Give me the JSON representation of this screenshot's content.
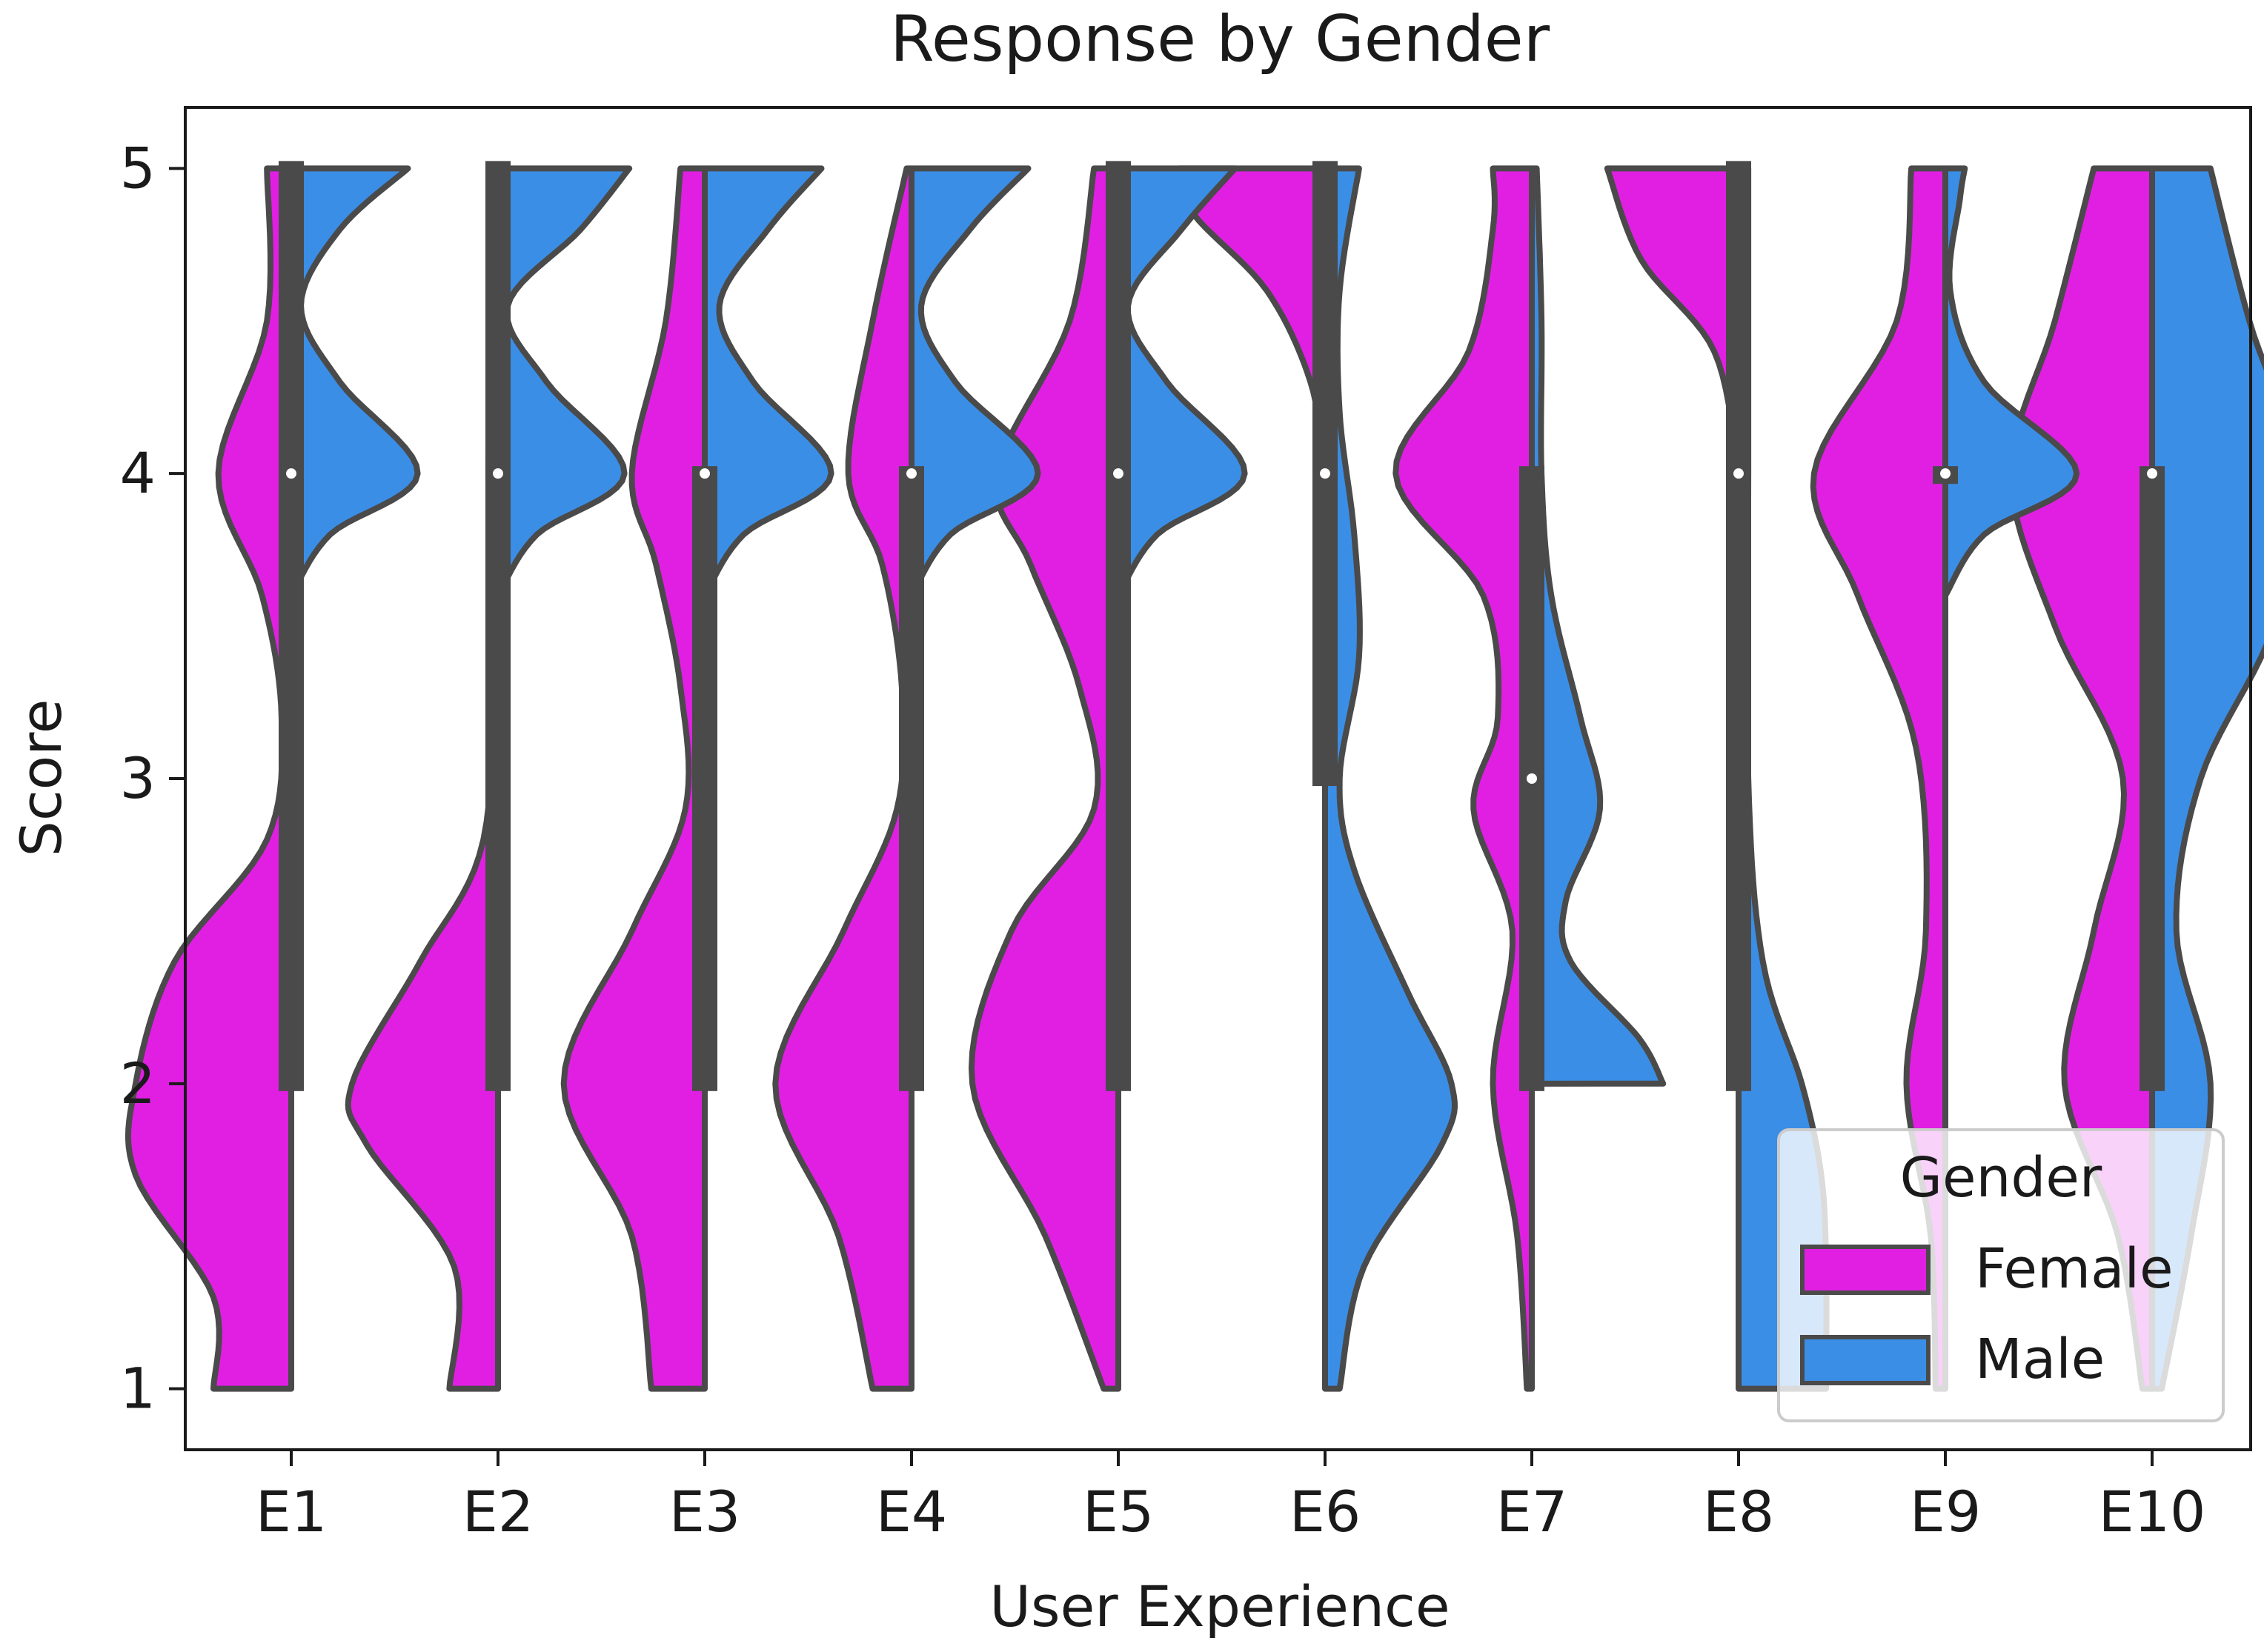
{
  "chart_data": {
    "type": "violin",
    "variant": "split",
    "title": "Response by Gender",
    "xlabel": "User Experience",
    "ylabel": "Score",
    "ylim": [
      0.8,
      5.2
    ],
    "yticks": [
      1,
      2,
      3,
      4,
      5
    ],
    "categories": [
      "E1",
      "E2",
      "E3",
      "E4",
      "E5",
      "E6",
      "E7",
      "E8",
      "E9",
      "E10"
    ],
    "legend": {
      "title": "Gender",
      "position": "bottom-right",
      "entries": [
        {
          "name": "Female",
          "color": "#e11fe3"
        },
        {
          "name": "Male",
          "color": "#3a8ee6"
        }
      ]
    },
    "series": [
      {
        "name": "Female",
        "color": "#e11fe3",
        "densities": [
          {
            "cat": "E1",
            "range": [
              1,
              5
            ],
            "points": [
              [
                1,
                0.16
              ],
              [
                1.3,
                0.16
              ],
              [
                1.7,
                0.32
              ],
              [
                2,
                0.32
              ],
              [
                2.4,
                0.24
              ],
              [
                2.8,
                0.05
              ],
              [
                3.2,
                0.02
              ],
              [
                3.6,
                0.06
              ],
              [
                4,
                0.15
              ],
              [
                4.5,
                0.05
              ],
              [
                5,
                0.05
              ]
            ]
          },
          {
            "cat": "E2",
            "range": [
              1,
              5
            ],
            "points": [
              [
                1,
                0.1
              ],
              [
                1.4,
                0.09
              ],
              [
                1.8,
                0.27
              ],
              [
                2,
                0.3
              ],
              [
                2.4,
                0.16
              ],
              [
                2.8,
                0.03
              ],
              [
                3.5,
                0.01
              ],
              [
                4,
                0.02
              ],
              [
                5,
                0.01
              ]
            ]
          },
          {
            "cat": "E3",
            "range": [
              1,
              5
            ],
            "points": [
              [
                1,
                0.11
              ],
              [
                1.5,
                0.15
              ],
              [
                2,
                0.29
              ],
              [
                2.5,
                0.15
              ],
              [
                2.9,
                0.04
              ],
              [
                3.3,
                0.05
              ],
              [
                3.7,
                0.1
              ],
              [
                4,
                0.15
              ],
              [
                4.5,
                0.08
              ],
              [
                5,
                0.05
              ]
            ]
          },
          {
            "cat": "E4",
            "range": [
              1,
              5
            ],
            "points": [
              [
                1,
                0.08
              ],
              [
                1.5,
                0.15
              ],
              [
                2,
                0.28
              ],
              [
                2.5,
                0.14
              ],
              [
                2.9,
                0.03
              ],
              [
                3.3,
                0.02
              ],
              [
                3.7,
                0.06
              ],
              [
                4,
                0.13
              ],
              [
                4.5,
                0.08
              ],
              [
                5,
                0.01
              ]
            ]
          },
          {
            "cat": "E5",
            "range": [
              1,
              5
            ],
            "points": [
              [
                1,
                0.03
              ],
              [
                1.5,
                0.15
              ],
              [
                2,
                0.3
              ],
              [
                2.5,
                0.22
              ],
              [
                2.9,
                0.05
              ],
              [
                3.3,
                0.08
              ],
              [
                3.7,
                0.18
              ],
              [
                4,
                0.25
              ],
              [
                4.5,
                0.1
              ],
              [
                5,
                0.05
              ]
            ]
          },
          {
            "cat": "E6",
            "range": [
              4,
              5
            ],
            "points": [
              [
                4,
                0.0
              ],
              [
                4.3,
                0.03
              ],
              [
                4.6,
                0.12
              ],
              [
                4.85,
                0.27
              ],
              [
                5,
                0.3
              ]
            ]
          },
          {
            "cat": "E7",
            "range": [
              1,
              5
            ],
            "points": [
              [
                1,
                0.01
              ],
              [
                1.5,
                0.03
              ],
              [
                2,
                0.08
              ],
              [
                2.5,
                0.04
              ],
              [
                2.9,
                0.12
              ],
              [
                3.2,
                0.07
              ],
              [
                3.6,
                0.1
              ],
              [
                4,
                0.28
              ],
              [
                4.4,
                0.13
              ],
              [
                4.8,
                0.08
              ],
              [
                5,
                0.08
              ]
            ]
          },
          {
            "cat": "E8",
            "range": [
              4,
              5
            ],
            "points": [
              [
                4,
                0.0
              ],
              [
                4.4,
                0.05
              ],
              [
                4.7,
                0.2
              ],
              [
                5,
                0.27
              ]
            ]
          },
          {
            "cat": "E9",
            "range": [
              1,
              5
            ],
            "points": [
              [
                1,
                0.02
              ],
              [
                1.5,
                0.03
              ],
              [
                2,
                0.08
              ],
              [
                2.5,
                0.04
              ],
              [
                3.1,
                0.06
              ],
              [
                3.6,
                0.18
              ],
              [
                4,
                0.27
              ],
              [
                4.5,
                0.1
              ],
              [
                5,
                0.07
              ]
            ]
          },
          {
            "cat": "E10",
            "range": [
              1,
              5
            ],
            "points": [
              [
                1,
                0.02
              ],
              [
                1.5,
                0.07
              ],
              [
                2,
                0.18
              ],
              [
                2.5,
                0.12
              ],
              [
                3,
                0.06
              ],
              [
                3.5,
                0.2
              ],
              [
                4,
                0.29
              ],
              [
                4.5,
                0.2
              ],
              [
                5,
                0.12
              ]
            ]
          }
        ]
      },
      {
        "name": "Male",
        "color": "#3a8ee6",
        "densities": [
          {
            "cat": "E1",
            "range": [
              3.6,
              5
            ],
            "points": [
              [
                3.6,
                0.0
              ],
              [
                3.8,
                0.08
              ],
              [
                4,
                0.26
              ],
              [
                4.3,
                0.1
              ],
              [
                4.55,
                0.02
              ],
              [
                4.8,
                0.1
              ],
              [
                5,
                0.24
              ]
            ]
          },
          {
            "cat": "E2",
            "range": [
              3.6,
              5
            ],
            "points": [
              [
                3.6,
                0.0
              ],
              [
                3.8,
                0.08
              ],
              [
                4,
                0.26
              ],
              [
                4.3,
                0.1
              ],
              [
                4.55,
                0.02
              ],
              [
                4.8,
                0.17
              ],
              [
                5,
                0.27
              ]
            ]
          },
          {
            "cat": "E3",
            "range": [
              3.6,
              5
            ],
            "points": [
              [
                3.6,
                0.0
              ],
              [
                3.8,
                0.08
              ],
              [
                4,
                0.26
              ],
              [
                4.3,
                0.1
              ],
              [
                4.55,
                0.03
              ],
              [
                4.8,
                0.13
              ],
              [
                5,
                0.24
              ]
            ]
          },
          {
            "cat": "E4",
            "range": [
              3.6,
              5
            ],
            "points": [
              [
                3.6,
                0.0
              ],
              [
                3.8,
                0.08
              ],
              [
                4,
                0.26
              ],
              [
                4.3,
                0.09
              ],
              [
                4.55,
                0.02
              ],
              [
                4.8,
                0.12
              ],
              [
                5,
                0.24
              ]
            ]
          },
          {
            "cat": "E5",
            "range": [
              3.6,
              5
            ],
            "points": [
              [
                3.6,
                0.0
              ],
              [
                3.8,
                0.08
              ],
              [
                4,
                0.26
              ],
              [
                4.3,
                0.1
              ],
              [
                4.55,
                0.02
              ],
              [
                4.8,
                0.13
              ],
              [
                5,
                0.24
              ]
            ]
          },
          {
            "cat": "E6",
            "range": [
              1,
              5
            ],
            "points": [
              [
                1,
                0.03
              ],
              [
                1.4,
                0.08
              ],
              [
                1.8,
                0.24
              ],
              [
                2,
                0.26
              ],
              [
                2.3,
                0.17
              ],
              [
                2.7,
                0.06
              ],
              [
                3,
                0.03
              ],
              [
                3.4,
                0.07
              ],
              [
                3.8,
                0.06
              ],
              [
                4.2,
                0.03
              ],
              [
                4.6,
                0.03
              ],
              [
                5,
                0.07
              ]
            ]
          },
          {
            "cat": "E7",
            "range": [
              2,
              5
            ],
            "points": [
              [
                2,
                0.27
              ],
              [
                2.15,
                0.22
              ],
              [
                2.4,
                0.08
              ],
              [
                2.6,
                0.07
              ],
              [
                2.9,
                0.14
              ],
              [
                3.2,
                0.1
              ],
              [
                3.6,
                0.04
              ],
              [
                4,
                0.02
              ],
              [
                4.5,
                0.02
              ],
              [
                5,
                0.01
              ]
            ]
          },
          {
            "cat": "E8",
            "range": [
              1,
              5
            ],
            "points": [
              [
                1,
                0.18
              ],
              [
                1.4,
                0.18
              ],
              [
                1.7,
                0.17
              ],
              [
                2,
                0.13
              ],
              [
                2.4,
                0.05
              ],
              [
                3,
                0.02
              ],
              [
                4,
                0.02
              ],
              [
                4.5,
                0.02
              ],
              [
                5,
                0.02
              ]
            ]
          },
          {
            "cat": "E9",
            "range": [
              3.6,
              5
            ],
            "points": [
              [
                3.6,
                0.0
              ],
              [
                3.8,
                0.08
              ],
              [
                4,
                0.27
              ],
              [
                4.3,
                0.08
              ],
              [
                4.6,
                0.01
              ],
              [
                4.9,
                0.03
              ],
              [
                5,
                0.04
              ]
            ]
          },
          {
            "cat": "E10",
            "range": [
              1,
              5
            ],
            "points": [
              [
                1,
                0.02
              ],
              [
                1.5,
                0.08
              ],
              [
                2,
                0.12
              ],
              [
                2.5,
                0.05
              ],
              [
                3,
                0.1
              ],
              [
                3.5,
                0.25
              ],
              [
                4,
                0.3
              ],
              [
                4.5,
                0.2
              ],
              [
                5,
                0.12
              ]
            ]
          }
        ]
      }
    ],
    "box": [
      {
        "cat": "E1",
        "q1": 2,
        "q3": 5,
        "median": 4
      },
      {
        "cat": "E2",
        "q1": 2,
        "q3": 5,
        "median": 4
      },
      {
        "cat": "E3",
        "q1": 2,
        "q3": 4,
        "median": 4
      },
      {
        "cat": "E4",
        "q1": 2,
        "q3": 4,
        "median": 4
      },
      {
        "cat": "E5",
        "q1": 2,
        "q3": 5,
        "median": 4
      },
      {
        "cat": "E6",
        "q1": 3,
        "q3": 5,
        "median": 4
      },
      {
        "cat": "E7",
        "q1": 2,
        "q3": 4,
        "median": 3
      },
      {
        "cat": "E8",
        "q1": 2,
        "q3": 5,
        "median": 4
      },
      {
        "cat": "E9",
        "q1": 4,
        "q3": 4,
        "median": 4
      },
      {
        "cat": "E10",
        "q1": 2,
        "q3": 4,
        "median": 4
      }
    ],
    "whisker_range": [
      1,
      5
    ]
  }
}
